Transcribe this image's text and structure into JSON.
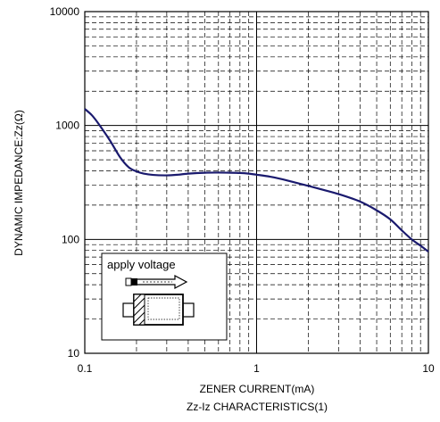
{
  "chart_data": {
    "type": "line",
    "title": "",
    "caption": "Zz-Iz CHARACTERISTICS(1)",
    "xlabel": "ZENER CURRENT(mA)",
    "ylabel": "DYNAMIC IMPEDANCE:Zz(Ω)",
    "xscale": "log",
    "yscale": "log",
    "xlim": [
      0.1,
      10
    ],
    "ylim": [
      10,
      10000
    ],
    "xticks": [
      "0.1",
      "1",
      "10"
    ],
    "yticks": [
      "10",
      "100",
      "1000",
      "10000"
    ],
    "grid": true,
    "line_color": "#1a1a6e",
    "series": [
      {
        "name": "",
        "x": [
          0.1,
          0.11,
          0.12,
          0.14,
          0.16,
          0.18,
          0.2,
          0.22,
          0.25,
          0.3,
          0.35,
          0.4,
          0.5,
          0.6,
          0.7,
          0.8,
          0.9,
          1.0,
          1.2,
          1.5,
          2.0,
          2.5,
          3.0,
          4.0,
          5.0,
          6.0,
          7.0,
          8.0,
          9.0,
          10.0
        ],
        "y": [
          1400,
          1230,
          1040,
          740,
          530,
          430,
          395,
          378,
          368,
          365,
          370,
          378,
          385,
          386,
          385,
          383,
          378,
          370,
          355,
          330,
          295,
          270,
          250,
          215,
          180,
          150,
          120,
          100,
          88,
          78
        ]
      }
    ],
    "inset": {
      "label": "apply voltage",
      "icons": [
        "arrow-icon",
        "diode-package-icon"
      ]
    }
  }
}
